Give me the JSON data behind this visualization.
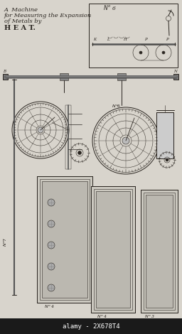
{
  "title_lines": [
    "A  Machine",
    "for Measuring the Expansion",
    "of Metals by",
    "H E A T."
  ],
  "bg_color": "#d8d4cc",
  "fg_color": "#2a2520",
  "watermark": "alamy - 2X678T4",
  "watermark_bg": "#1a1a1a",
  "watermark_color": "#ffffff",
  "fig_width": 2.56,
  "fig_height": 4.7
}
